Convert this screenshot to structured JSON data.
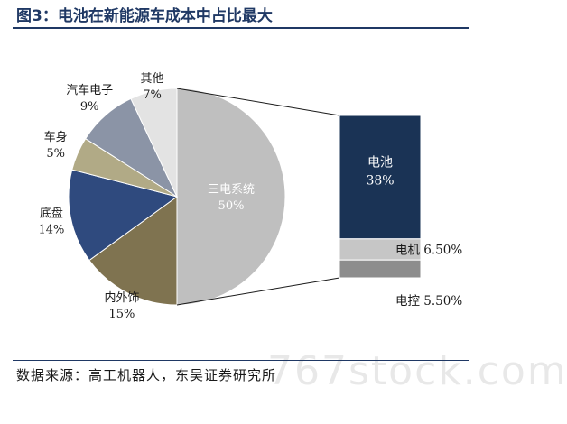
{
  "title": "图3：电池在新能源车成本中占比最大",
  "source": "数据来源：高工机器人，东吴证券研究所",
  "watermark": "767stock.com",
  "chart_data": {
    "type": "pie",
    "title": "",
    "slices": [
      {
        "label": "三电系统",
        "value": 50,
        "display": "50%",
        "color": "#bfbfbf",
        "label_color": "#ffffff"
      },
      {
        "label": "内外饰",
        "value": 15,
        "display": "15%",
        "color": "#7f7350",
        "label_color": "#1a1a1a"
      },
      {
        "label": "底盘",
        "value": 14,
        "display": "14%",
        "color": "#2f4a7e",
        "label_color": "#1a1a1a"
      },
      {
        "label": "车身",
        "value": 5,
        "display": "5%",
        "color": "#b1aa86",
        "label_color": "#1a1a1a"
      },
      {
        "label": "汽车电子",
        "value": 9,
        "display": "9%",
        "color": "#8b94a6",
        "label_color": "#1a1a1a"
      },
      {
        "label": "其他",
        "value": 7,
        "display": "7%",
        "color": "#e3e3e3",
        "label_color": "#1a1a1a"
      }
    ],
    "breakdown": {
      "of": "三电系统",
      "series": [
        {
          "label": "电池",
          "value": 38,
          "display": "38%",
          "color": "#1a3355",
          "label_color": "#ffffff"
        },
        {
          "label": "电机",
          "value": 6.5,
          "display": "6.50%",
          "color": "#c6c6c6",
          "label_color": "#1a1a1a"
        },
        {
          "label": "电控",
          "value": 5.5,
          "display": "5.50%",
          "color": "#8d8d8d",
          "label_color": "#1a1a1a"
        }
      ]
    }
  }
}
